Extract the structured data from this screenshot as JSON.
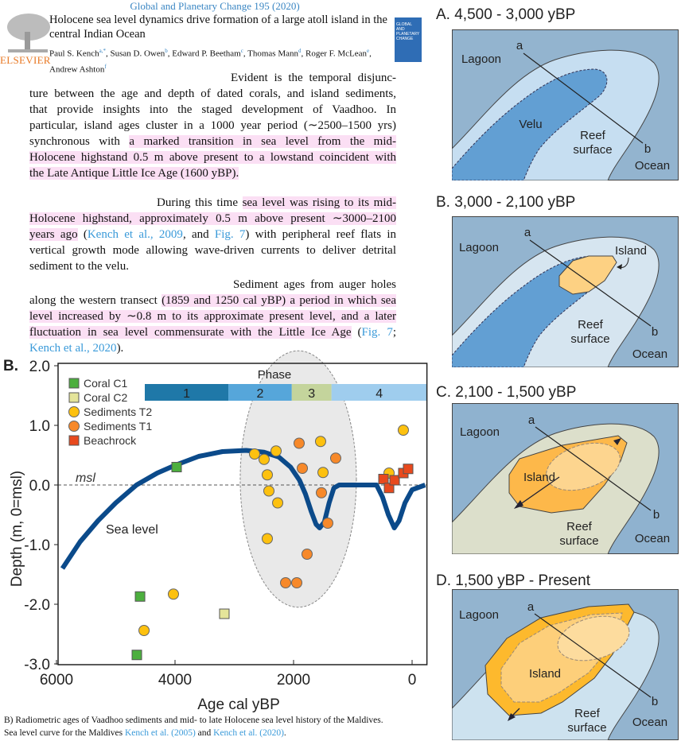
{
  "header": {
    "journal": "Global and Planetary Change 195 (2020)",
    "title": "Holocene sea level dynamics drive formation of a large atoll island in the central Indian Ocean",
    "authors": [
      {
        "name": "Paul S. Kench",
        "aff": "a,*"
      },
      {
        "name": "Susan D. Owen",
        "aff": "b"
      },
      {
        "name": "Edward P. Beetham",
        "aff": "c"
      },
      {
        "name": "Thomas Mann",
        "aff": "d"
      },
      {
        "name": "Roger F. McLean",
        "aff": "e"
      },
      {
        "name": "Andrew Ashton",
        "aff": "f"
      }
    ],
    "publisher": "ELSEVIER",
    "cover_text": "GLOBAL AND PLANETARY CHANGE"
  },
  "body": {
    "paragraphs": [
      {
        "lines": [
          [
            {
              "t": "Evident is the temporal disjunc-",
              "s": ""
            }
          ],
          [
            {
              "t": "ture between the age and depth of dated corals, and island sediments,",
              "s": ""
            }
          ],
          [
            {
              "t": "that provide insights into the staged development of Vaadhoo. In",
              "s": ""
            }
          ],
          [
            {
              "t": "particular, island ages cluster in a 1000 year period (∼2500–1500 yrs)",
              "s": ""
            }
          ],
          [
            {
              "t": "synchronous with ",
              "s": ""
            },
            {
              "t": "a marked transition in sea level from the mid-",
              "s": "h"
            }
          ],
          [
            {
              "t": "Holocene highstand 0.5 m above present to a lowstand coincident with",
              "s": "h"
            }
          ],
          [
            {
              "t": "the Late Antique Little Ice Age (1600 yBP).",
              "s": "h"
            }
          ]
        ]
      },
      {
        "lines": [
          [
            {
              "t": "During this time ",
              "s": ""
            },
            {
              "t": "sea level was rising to its mid-",
              "s": "h"
            }
          ],
          [
            {
              "t": "Holocene highstand, approximately 0.5 m above present ∼3000–2100",
              "s": "h"
            }
          ],
          [
            {
              "t": "years ago",
              "s": "h"
            },
            {
              "t": " (",
              "s": ""
            },
            {
              "t": "Kench et al., 2009",
              "s": "l"
            },
            {
              "t": ", and ",
              "s": ""
            },
            {
              "t": "Fig. 7",
              "s": "l"
            },
            {
              "t": ") with peripheral reef flats in",
              "s": ""
            }
          ],
          [
            {
              "t": "vertical growth mode allowing wave-driven currents to deliver detrital",
              "s": ""
            }
          ],
          [
            {
              "t": "sediment to the velu.",
              "s": ""
            }
          ]
        ]
      },
      {
        "lines": [
          [
            {
              "t": "Sediment ages from auger holes",
              "s": ""
            }
          ],
          [
            {
              "t": "along the western transect ",
              "s": ""
            },
            {
              "t": "(1859 and 1250 cal yBP) a period in which sea",
              "s": "h"
            }
          ],
          [
            {
              "t": "level increased by ∼0.8 m to its approximate present level, and a later",
              "s": "h"
            }
          ],
          [
            {
              "t": "fluctuation in sea level commensurate with the Little Ice Age",
              "s": "h"
            },
            {
              "t": " (",
              "s": ""
            },
            {
              "t": "Fig. 7",
              "s": "l"
            },
            {
              "t": ";",
              "s": ""
            }
          ],
          [
            {
              "t": "Kench et al., 2020",
              "s": "l"
            },
            {
              "t": ").",
              "s": ""
            }
          ]
        ]
      }
    ]
  },
  "chart_data": {
    "type": "scatter",
    "panel_label": "B.",
    "xlabel": "Age cal yBP",
    "ylabel": "Depth (m, 0=msl)",
    "xlim": [
      6000,
      -250
    ],
    "ylim": [
      -3.0,
      2.0
    ],
    "x_ticks": [
      6000,
      4000,
      2000,
      0
    ],
    "x_tick_labels": [
      "6000",
      "4000",
      "2000",
      "0"
    ],
    "y_ticks": [
      2.0,
      1.0,
      0.0,
      -1.0,
      -2.0,
      -3.0
    ],
    "y_tick_labels": [
      "2.0",
      "1.0",
      "0.0",
      "-1.0",
      "-2.0",
      "-3.0"
    ],
    "grid": false,
    "legend_placement": "top-left",
    "msl_label": "msl",
    "curve_label": "Sea level",
    "phase": {
      "title": "Phase",
      "segments": [
        {
          "label": "1",
          "from": 4510,
          "to": 3100,
          "color": "#1f78a8"
        },
        {
          "label": "2",
          "from": 3100,
          "to": 2030,
          "color": "#56a6da"
        },
        {
          "label": "3",
          "from": 2030,
          "to": 1360,
          "color": "#c4d49c"
        },
        {
          "label": "4",
          "from": 1360,
          "to": -250,
          "color": "#9fcdee"
        }
      ]
    },
    "cluster_ellipse": {
      "center": [
        1920,
        0.1
      ],
      "half_width_yr": 980,
      "half_height_m": 2.15
    },
    "sea_level": {
      "name": "Sea level",
      "color": "#0b4a8a",
      "points": [
        [
          5900,
          -1.4
        ],
        [
          5600,
          -0.95
        ],
        [
          5300,
          -0.6
        ],
        [
          5000,
          -0.3
        ],
        [
          4650,
          0
        ],
        [
          4300,
          0.2
        ],
        [
          4000,
          0.33
        ],
        [
          3600,
          0.48
        ],
        [
          3200,
          0.56
        ],
        [
          2800,
          0.58
        ],
        [
          2500,
          0.55
        ],
        [
          2250,
          0.47
        ],
        [
          2050,
          0.3
        ],
        [
          1900,
          0.08
        ],
        [
          1800,
          -0.15
        ],
        [
          1700,
          -0.45
        ],
        [
          1620,
          -0.66
        ],
        [
          1560,
          -0.72
        ],
        [
          1480,
          -0.62
        ],
        [
          1400,
          -0.3
        ],
        [
          1320,
          -0.05
        ],
        [
          1230,
          0
        ],
        [
          600,
          0
        ],
        [
          500,
          -0.2
        ],
        [
          400,
          -0.5
        ],
        [
          300,
          -0.72
        ],
        [
          220,
          -0.6
        ],
        [
          120,
          -0.3
        ],
        [
          0,
          -0.08
        ],
        [
          -220,
          0
        ]
      ]
    },
    "series": [
      {
        "name": "Coral C1",
        "marker": "square",
        "color": "#4caf3e",
        "points": [
          [
            3973,
            0.3
          ],
          [
            4590,
            -1.87
          ],
          [
            4644,
            -2.85
          ]
        ]
      },
      {
        "name": "Coral C2",
        "marker": "square",
        "color": "#e4e49a",
        "points": [
          [
            3168,
            -2.16
          ]
        ]
      },
      {
        "name": "Sediments T2",
        "marker": "circle",
        "color": "#fdc10f",
        "points": [
          [
            2658,
            0.52
          ],
          [
            2497,
            0.43
          ],
          [
            2295,
            0.57
          ],
          [
            2443,
            0.17
          ],
          [
            2416,
            -0.1
          ],
          [
            2268,
            -0.3
          ],
          [
            2443,
            -0.9
          ],
          [
            1544,
            0.73
          ],
          [
            1503,
            0.21
          ],
          [
            148,
            0.92
          ],
          [
            389,
            0.2
          ],
          [
            4027,
            -1.83
          ],
          [
            4523,
            -2.44
          ]
        ]
      },
      {
        "name": "Sediments T1",
        "marker": "circle",
        "color": "#f7892a",
        "points": [
          [
            1906,
            0.7
          ],
          [
            1852,
            0.28
          ],
          [
            1289,
            0.45
          ],
          [
            1530,
            -0.13
          ],
          [
            1423,
            -0.64
          ],
          [
            1772,
            -1.16
          ],
          [
            2134,
            -1.64
          ],
          [
            1946,
            -1.64
          ]
        ]
      },
      {
        "name": "Beachrock",
        "marker": "square",
        "color": "#e8491d",
        "points": [
          [
            483,
            0.1
          ],
          [
            389,
            -0.05
          ],
          [
            295,
            0.08
          ],
          [
            148,
            0.2
          ],
          [
            67,
            0.27
          ]
        ]
      }
    ]
  },
  "caption": {
    "line1": "B) Radiometric ages of Vaadhoo sediments and mid- to late Holocene sea level history of the Maldives.",
    "line2_pre": "Sea level curve for the Maldives ",
    "ref1": "Kench et al. (2005)",
    "mid": " and ",
    "ref2": "Kench et al. (2020)",
    "end": "."
  },
  "diagrams": [
    {
      "title": "A. 4,500 - 3,000 yBP",
      "labels": {
        "lagoon": "Lagoon",
        "a": "a",
        "b": "b",
        "velu": "Velu",
        "reef1": "Reef",
        "reef2": "surface",
        "ocean": "Ocean"
      },
      "colors": {
        "water": "#93b4cf",
        "reef": "#c6def1",
        "velu": "#629fd3"
      }
    },
    {
      "title": "B. 3,000 - 2,100 yBP",
      "labels": {
        "lagoon": "Lagoon",
        "a": "a",
        "b": "b",
        "island": "Island",
        "reef1": "Reef",
        "reef2": "surface",
        "ocean": "Ocean"
      },
      "colors": {
        "water": "#93b4cf",
        "reef": "#d6e5f0",
        "velu": "#629fd3",
        "island": "#fdd183"
      }
    },
    {
      "title": "C. 2,100 - 1,500 yBP",
      "labels": {
        "lagoon": "Lagoon",
        "a": "a",
        "b": "b",
        "island": "Island",
        "reef1": "Reef",
        "reef2": "surface",
        "ocean": "Ocean"
      },
      "colors": {
        "water": "#8fb2cf",
        "reef": "#dcdfcb",
        "island": "#fdb84a",
        "island_inner": "#fdd58f"
      }
    },
    {
      "title": "D. 1,500 yBP - Present",
      "labels": {
        "lagoon": "Lagoon",
        "a": "a",
        "b": "b",
        "island": "Island",
        "reef1": "Reef",
        "reef2": "surface",
        "ocean": "Ocean"
      },
      "colors": {
        "water": "#93b4cf",
        "reef": "#cde2ef",
        "island": "#fdb92d",
        "island_mid": "#fdcf7a",
        "island_inner": "#fddc9e"
      }
    }
  ]
}
